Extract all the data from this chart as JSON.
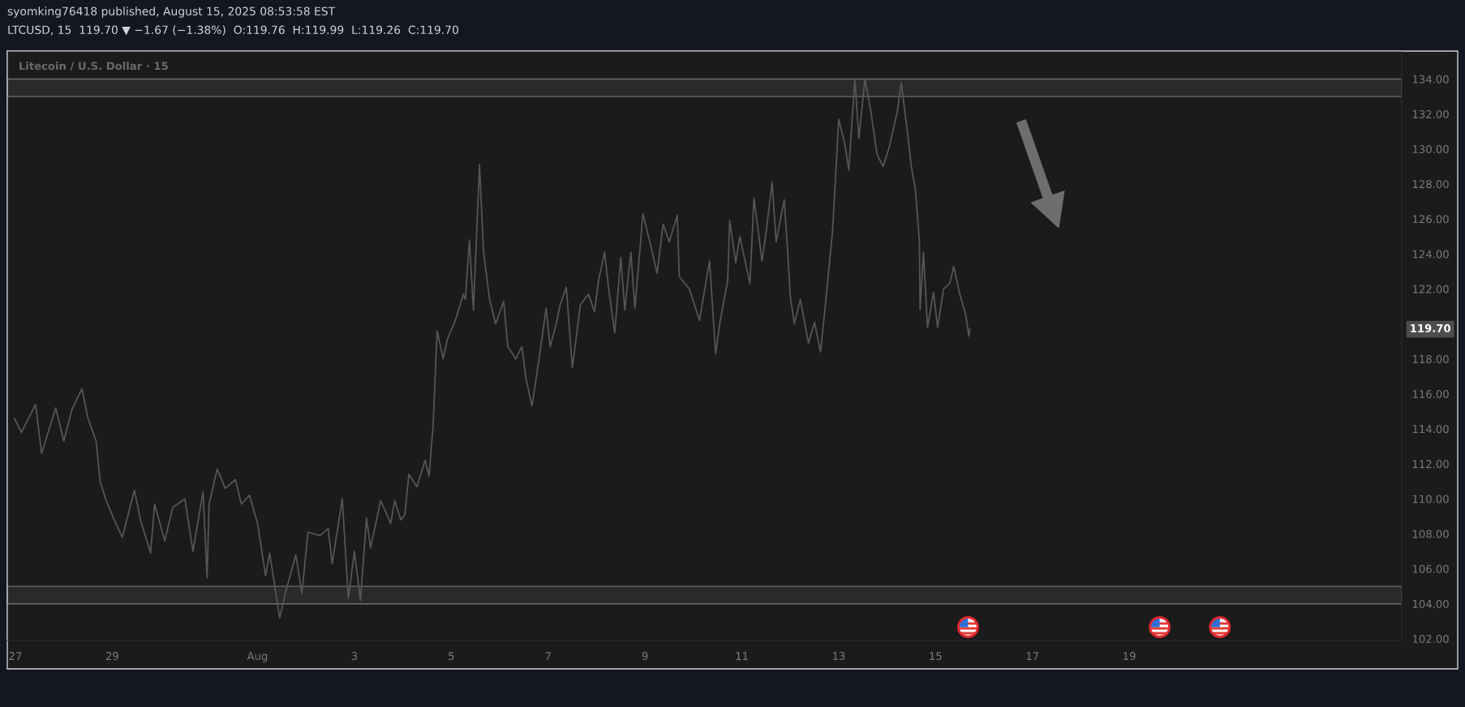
{
  "chart_data": {
    "type": "line",
    "title": "syomking76418 published, August 15, 2025 08:53:58 EST",
    "subtitle": "LTCUSD, 15  119.70 ▼ −1.67 (−1.38%)  O:119.76  H:119.99  L:119.26  C:119.70",
    "annotations": [
      "Litecoin / U.S. Dollar · 15",
      "119.70"
    ],
    "x": [
      "2025-07-26T23:30",
      "2025-07-27T03:00",
      "2025-07-27T10:00",
      "2025-07-27T13:00",
      "2025-07-27T20:00",
      "2025-07-28T00:00",
      "2025-07-28T04:00",
      "2025-07-28T09:00",
      "2025-07-28T12:00",
      "2025-07-28T16:00",
      "2025-07-28T18:00",
      "2025-07-28T21:00",
      "2025-07-29T01:00",
      "2025-07-29T05:00",
      "2025-07-29T11:00",
      "2025-07-29T14:00",
      "2025-07-29T19:00",
      "2025-07-29T21:00",
      "2025-07-30T02:00",
      "2025-07-30T06:00",
      "2025-07-30T12:00",
      "2025-07-30T16:00",
      "2025-07-30T21:00",
      "2025-07-30T23:00",
      "2025-07-31T00:00",
      "2025-07-31T04:00",
      "2025-07-31T08:00",
      "2025-07-31T13:00",
      "2025-07-31T16:00",
      "2025-07-31T20:00",
      "2025-08-01T00:00",
      "2025-08-01T04:00",
      "2025-08-01T06:00",
      "2025-08-01T11:00",
      "2025-08-01T14:00",
      "2025-08-01T19:00",
      "2025-08-01T22:00",
      "2025-08-02T01:00",
      "2025-08-02T07:00",
      "2025-08-02T11:00",
      "2025-08-02T13:00",
      "2025-08-02T18:00",
      "2025-08-02T21:00",
      "2025-08-03T00:00",
      "2025-08-03T03:00",
      "2025-08-03T06:00",
      "2025-08-03T08:00",
      "2025-08-03T13:00",
      "2025-08-03T18:00",
      "2025-08-03T20:00",
      "2025-08-03T23:00",
      "2025-08-04T01:00",
      "2025-08-04T03:00",
      "2025-08-04T07:00",
      "2025-08-04T11:00",
      "2025-08-04T13:00",
      "2025-08-04T15:00",
      "2025-08-04T17:00",
      "2025-08-04T20:00",
      "2025-08-04T22:00",
      "2025-08-05T02:00",
      "2025-08-05T06:00",
      "2025-08-05T07:00",
      "2025-08-05T09:00",
      "2025-08-05T11:00",
      "2025-08-05T14:00",
      "2025-08-05T16:00",
      "2025-08-05T19:00",
      "2025-08-05T22:00",
      "2025-08-06T02:00",
      "2025-08-06T04:00",
      "2025-08-06T08:00",
      "2025-08-06T11:00",
      "2025-08-06T13:00",
      "2025-08-06T16:00",
      "2025-08-06T20:00",
      "2025-08-06T23:00",
      "2025-08-07T01:00",
      "2025-08-07T04:00",
      "2025-08-07T06:00",
      "2025-08-07T09:00",
      "2025-08-07T12:00",
      "2025-08-07T16:00",
      "2025-08-07T20:00",
      "2025-08-07T23:00",
      "2025-08-08T01:00",
      "2025-08-08T04:00",
      "2025-08-08T06:00",
      "2025-08-08T09:00",
      "2025-08-08T12:00",
      "2025-08-08T14:00",
      "2025-08-08T17:00",
      "2025-08-08T19:00",
      "2025-08-08T23:00",
      "2025-08-09T03:00",
      "2025-08-09T06:00",
      "2025-08-09T09:00",
      "2025-08-09T12:00",
      "2025-08-09T16:00",
      "2025-08-09T17:00",
      "2025-08-09T22:00",
      "2025-08-10T03:00",
      "2025-08-10T08:00",
      "2025-08-10T11:00",
      "2025-08-10T13:00",
      "2025-08-10T17:00",
      "2025-08-10T18:00",
      "2025-08-10T21:00",
      "2025-08-10T23:00",
      "2025-08-11T04:00",
      "2025-08-11T06:00",
      "2025-08-11T10:00",
      "2025-08-11T12:00",
      "2025-08-11T15:00",
      "2025-08-11T17:00",
      "2025-08-11T21:00",
      "2025-08-11T23:00",
      "2025-08-12T00:00",
      "2025-08-12T02:00",
      "2025-08-12T05:00",
      "2025-08-12T09:00",
      "2025-08-12T12:00",
      "2025-08-12T15:00",
      "2025-08-12T18:00",
      "2025-08-12T21:00",
      "2025-08-13T00:00",
      "2025-08-13T03:00",
      "2025-08-13T05:00",
      "2025-08-13T08:00",
      "2025-08-13T10:00",
      "2025-08-13T13:00",
      "2025-08-13T16:00",
      "2025-08-13T19:00",
      "2025-08-13T22:00",
      "2025-08-14T01:00",
      "2025-08-14T05:00",
      "2025-08-14T07:00",
      "2025-08-14T10:00",
      "2025-08-14T12:00",
      "2025-08-14T14:00",
      "2025-08-14T16:00",
      "2025-08-14T16:20",
      "2025-08-14T18:00",
      "2025-08-14T20:00",
      "2025-08-14T23:00",
      "2025-08-15T01:00",
      "2025-08-15T04:00",
      "2025-08-15T07:00",
      "2025-08-15T09:00",
      "2025-08-15T12:00",
      "2025-08-15T15:00",
      "2025-08-15T16:30",
      "2025-08-15T17:00"
    ],
    "series": [
      {
        "color": "#555555",
        "values": [
          114.6,
          113.8,
          115.4,
          112.6,
          115.2,
          113.3,
          115.1,
          116.3,
          114.6,
          113.3,
          111.0,
          109.9,
          108.8,
          107.8,
          110.5,
          108.8,
          106.9,
          109.7,
          107.6,
          109.5,
          110.0,
          107.0,
          110.4,
          105.5,
          109.7,
          111.7,
          110.6,
          111.1,
          109.7,
          110.2,
          108.6,
          105.6,
          106.9,
          103.2,
          104.7,
          106.8,
          104.6,
          108.1,
          107.9,
          108.3,
          106.3,
          110.0,
          104.3,
          107.0,
          104.2,
          108.9,
          107.2,
          109.9,
          108.6,
          109.9,
          108.8,
          109.1,
          111.4,
          110.7,
          112.2,
          111.3,
          114.2,
          119.6,
          118.0,
          119.1,
          120.2,
          121.7,
          121.4,
          124.8,
          120.8,
          129.1,
          124.1,
          121.4,
          120.0,
          121.3,
          118.7,
          118.0,
          118.7,
          116.9,
          115.3,
          118.4,
          120.9,
          118.7,
          120.0,
          121.1,
          122.1,
          117.5,
          121.1,
          121.7,
          120.7,
          122.5,
          124.1,
          122.0,
          119.5,
          123.8,
          120.8,
          124.1,
          120.9,
          126.3,
          124.4,
          122.9,
          125.7,
          124.7,
          126.2,
          122.7,
          122.0,
          120.2,
          123.6,
          118.3,
          120.0,
          122.5,
          125.9,
          123.5,
          125.0,
          122.3,
          127.2,
          123.6,
          125.2,
          128.1,
          124.7,
          127.1,
          123.6,
          121.6,
          120.0,
          121.4,
          118.9,
          120.1,
          118.4,
          121.8,
          125.4,
          131.7,
          130.3,
          128.8,
          134.0,
          130.6,
          134.0,
          132.1,
          129.7,
          129.0,
          130.1,
          132.1,
          133.8,
          131.0,
          129.0,
          127.7,
          124.7,
          120.8,
          124.1,
          119.8,
          121.8,
          119.8,
          122.0,
          122.3,
          123.3,
          121.7,
          120.5,
          119.3,
          119.7
        ]
      }
    ],
    "xlim": [
      "2025-07-26T20:00",
      "2025-08-24T15:00"
    ],
    "xticks": [
      {
        "value": "2025-07-27",
        "label": "27"
      },
      {
        "value": "2025-07-29",
        "label": "29"
      },
      {
        "value": "2025-08-01",
        "label": "Aug"
      },
      {
        "value": "2025-08-03",
        "label": "3"
      },
      {
        "value": "2025-08-05",
        "label": "5"
      },
      {
        "value": "2025-08-07",
        "label": "7"
      },
      {
        "value": "2025-08-09",
        "label": "9"
      },
      {
        "value": "2025-08-11",
        "label": "11"
      },
      {
        "value": "2025-08-13",
        "label": "13"
      },
      {
        "value": "2025-08-15",
        "label": "15"
      },
      {
        "value": "2025-08-17",
        "label": "17"
      },
      {
        "value": "2025-08-19",
        "label": "19"
      }
    ],
    "ylim": [
      101.9,
      135.6
    ],
    "yticks": [
      {
        "value": 102,
        "label": "102.00"
      },
      {
        "value": 104,
        "label": "104.00"
      },
      {
        "value": 106,
        "label": "106.00"
      },
      {
        "value": 108,
        "label": "108.00"
      },
      {
        "value": 110,
        "label": "110.00"
      },
      {
        "value": 112,
        "label": "112.00"
      },
      {
        "value": 114,
        "label": "114.00"
      },
      {
        "value": 116,
        "label": "116.00"
      },
      {
        "value": 118,
        "label": "118.00"
      },
      {
        "value": 122,
        "label": "122.00"
      },
      {
        "value": 124,
        "label": "124.00"
      },
      {
        "value": 126,
        "label": "126.00"
      },
      {
        "value": 128,
        "label": "128.00"
      },
      {
        "value": 130,
        "label": "130.00"
      },
      {
        "value": 132,
        "label": "132.00"
      },
      {
        "value": 134,
        "label": "134.00"
      }
    ],
    "bands": [
      {
        "axis": "y",
        "from": 133,
        "to": 134,
        "color": "#2a2a2a"
      },
      {
        "axis": "y",
        "from": 104,
        "to": 105,
        "color": "#2a2a2a"
      }
    ]
  }
}
